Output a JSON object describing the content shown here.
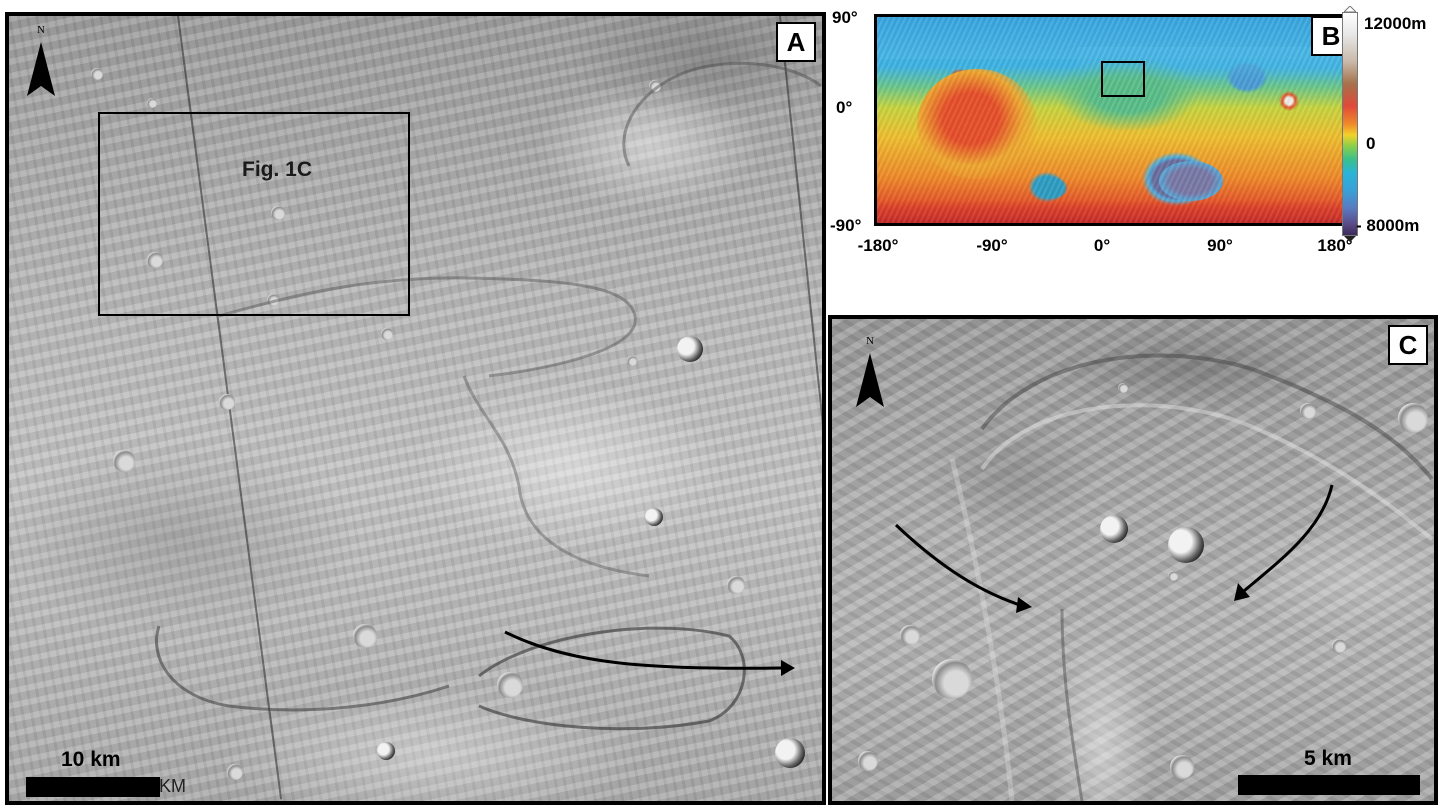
{
  "panels": {
    "a": {
      "label": "A",
      "north_label": "N",
      "inset_caption": "Fig. 1C",
      "scale_label": "10 km",
      "scale_overprint": "KM"
    },
    "b": {
      "label": "B",
      "y_ticks": [
        "90°",
        "0°",
        "-90°"
      ],
      "x_ticks": [
        "-180°",
        "-90°",
        "0°",
        "90°",
        "180°"
      ],
      "colorbar_labels": [
        "12000m",
        "0",
        "- 8000m"
      ]
    },
    "c": {
      "label": "C",
      "north_label": "N",
      "scale_label": "5 km"
    }
  }
}
